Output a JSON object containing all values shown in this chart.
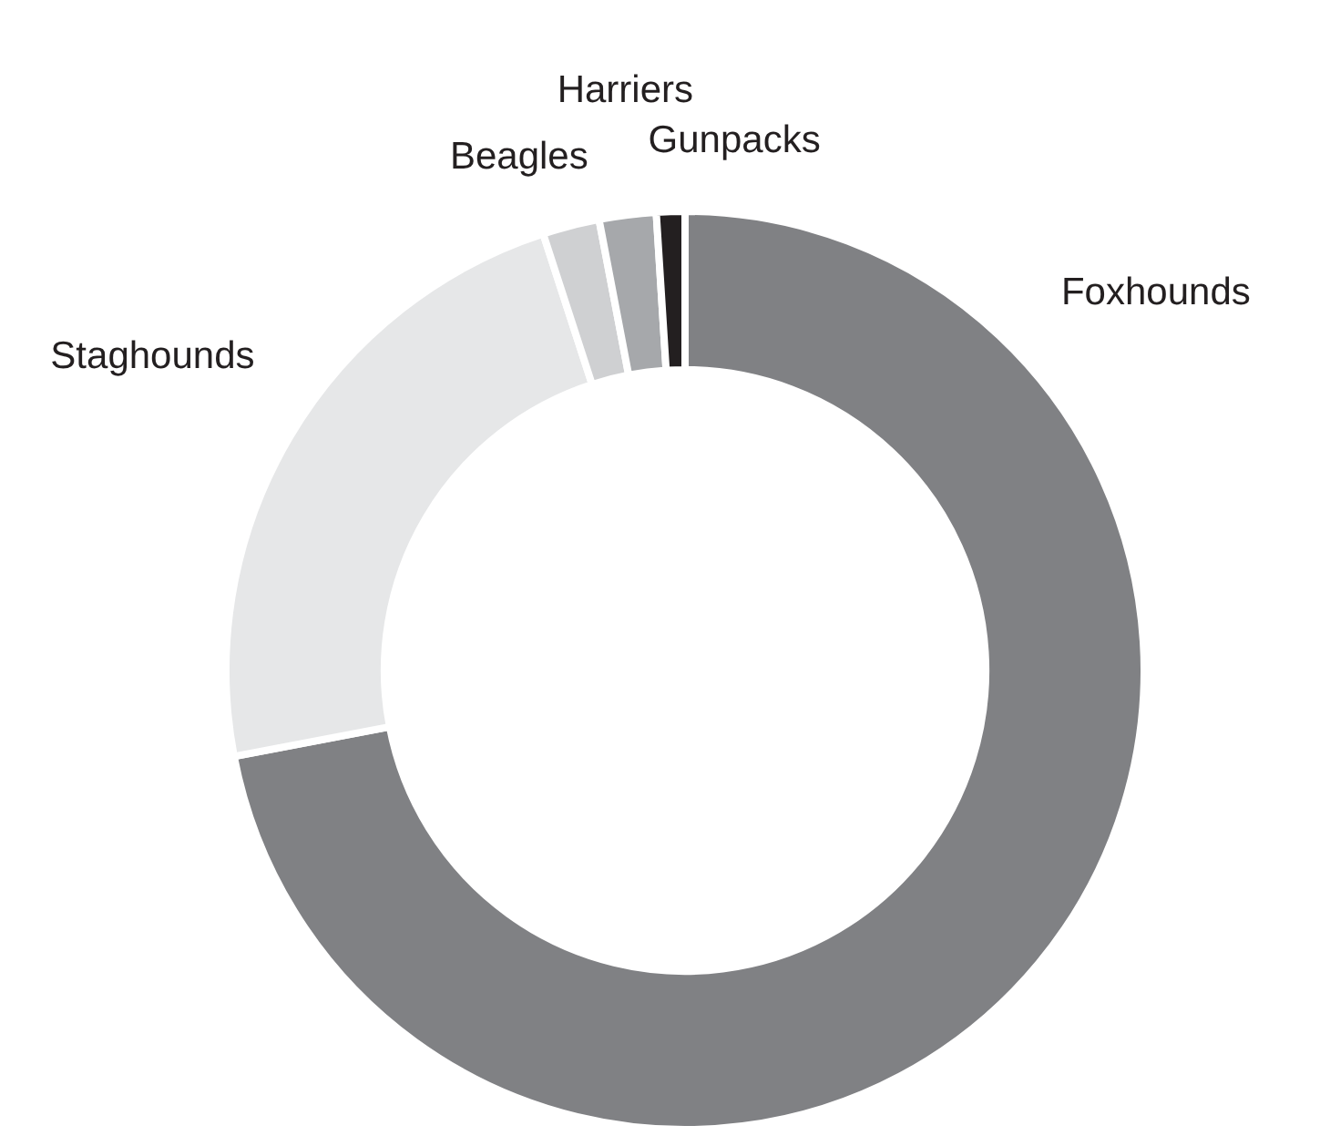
{
  "chart_data": {
    "type": "donut",
    "categories": [
      "Foxhounds",
      "Staghounds",
      "Beagles",
      "Harriers",
      "Gunpacks"
    ],
    "values": [
      72,
      23,
      2,
      2,
      1
    ],
    "colors": [
      "#808184",
      "#e6e7e8",
      "#cfd0d2",
      "#a6a8ab",
      "#231f20"
    ]
  }
}
